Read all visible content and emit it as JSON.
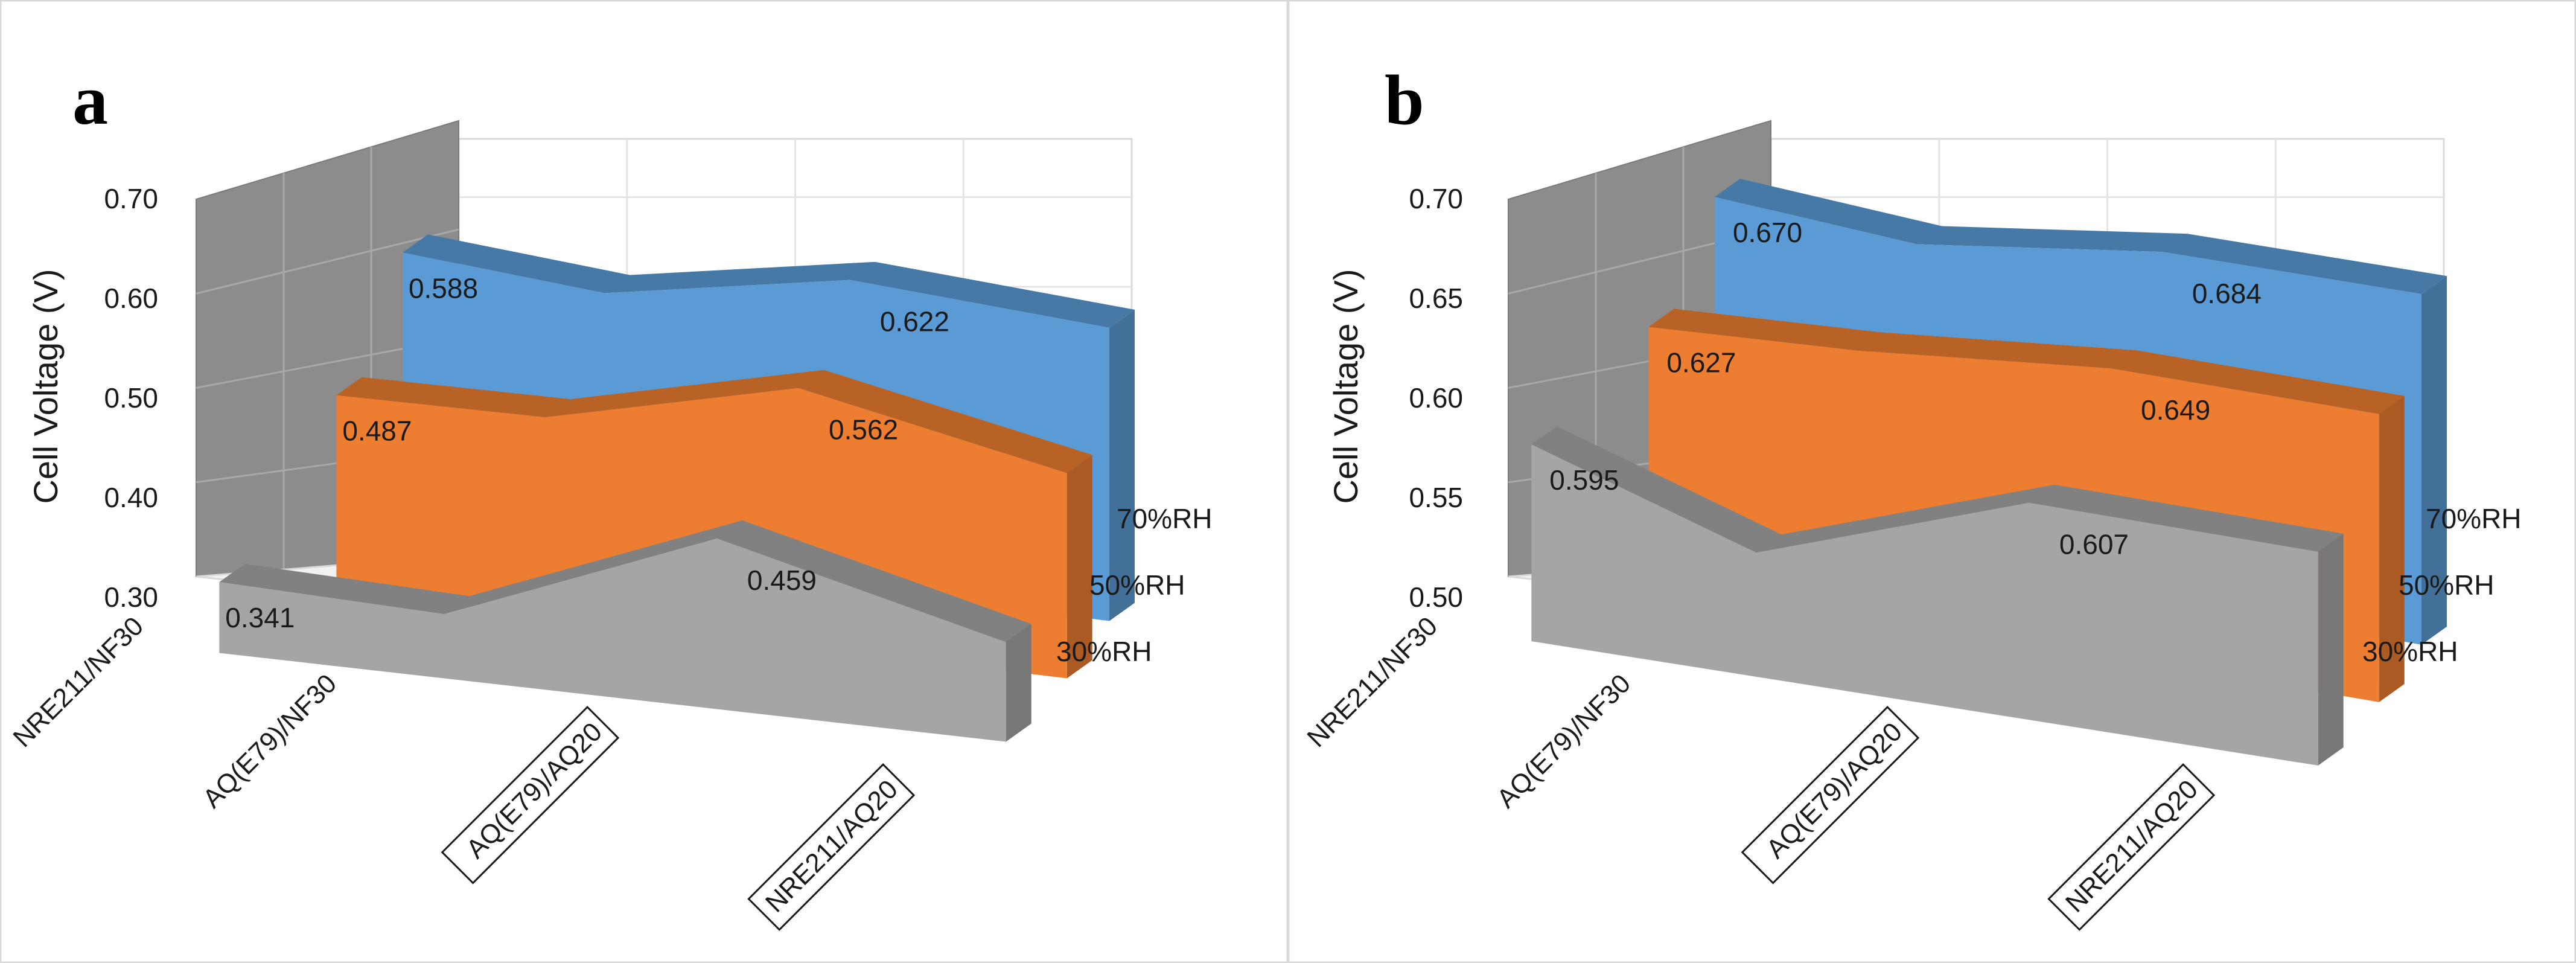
{
  "chart_data": [
    {
      "type": "area",
      "panel_label": "a",
      "ylabel": "Cell Voltage (V)",
      "ylim": [
        0.3,
        0.7
      ],
      "yticks": [
        "0.70",
        "0.60",
        "0.50",
        "0.40",
        "0.30"
      ],
      "ytick_values": [
        0.7,
        0.6,
        0.5,
        0.4,
        0.3
      ],
      "categories": [
        "NRE211/NF30",
        "AQ(E79)/NF30",
        "AQ(E79)/AQ20",
        "NRE211/AQ20"
      ],
      "boxed_categories": [
        false,
        false,
        true,
        true
      ],
      "series": [
        {
          "name": "70%RH",
          "color": "#5b9bd5",
          "values": [
            0.588,
            0.57,
            0.622,
            0.604
          ],
          "labels": [
            "0.588",
            "",
            "0.622",
            ""
          ]
        },
        {
          "name": "50%RH",
          "color": "#ed7d31",
          "values": [
            0.487,
            0.491,
            0.562,
            0.5
          ],
          "labels": [
            "0.487",
            "",
            "0.562",
            ""
          ]
        },
        {
          "name": "30%RH",
          "color": "#a5a5a5",
          "values": [
            0.341,
            0.333,
            0.459,
            0.375
          ],
          "labels": [
            "0.341",
            "",
            "0.459",
            ""
          ]
        }
      ]
    },
    {
      "type": "area",
      "panel_label": "b",
      "ylabel": "Cell Voltage (V)",
      "ylim": [
        0.5,
        0.7
      ],
      "yticks": [
        "0.70",
        "0.65",
        "0.60",
        "0.55",
        "0.50"
      ],
      "ytick_values": [
        0.7,
        0.65,
        0.6,
        0.55,
        0.5
      ],
      "categories": [
        "NRE211/NF30",
        "AQ(E79)/NF30",
        "AQ(E79)/AQ20",
        "NRE211/AQ20"
      ],
      "boxed_categories": [
        false,
        false,
        true,
        true
      ],
      "series": [
        {
          "name": "70%RH",
          "color": "#5b9bd5",
          "values": [
            0.67,
            0.663,
            0.684,
            0.686
          ],
          "labels": [
            "0.670",
            "",
            "0.684",
            ""
          ]
        },
        {
          "name": "50%RH",
          "color": "#ed7d31",
          "values": [
            0.627,
            0.634,
            0.649,
            0.649
          ],
          "labels": [
            "0.627",
            "",
            "0.649",
            ""
          ]
        },
        {
          "name": "30%RH",
          "color": "#a5a5a5",
          "values": [
            0.595,
            0.552,
            0.607,
            0.605
          ],
          "labels": [
            "0.595",
            "",
            "0.607",
            ""
          ]
        }
      ]
    }
  ]
}
